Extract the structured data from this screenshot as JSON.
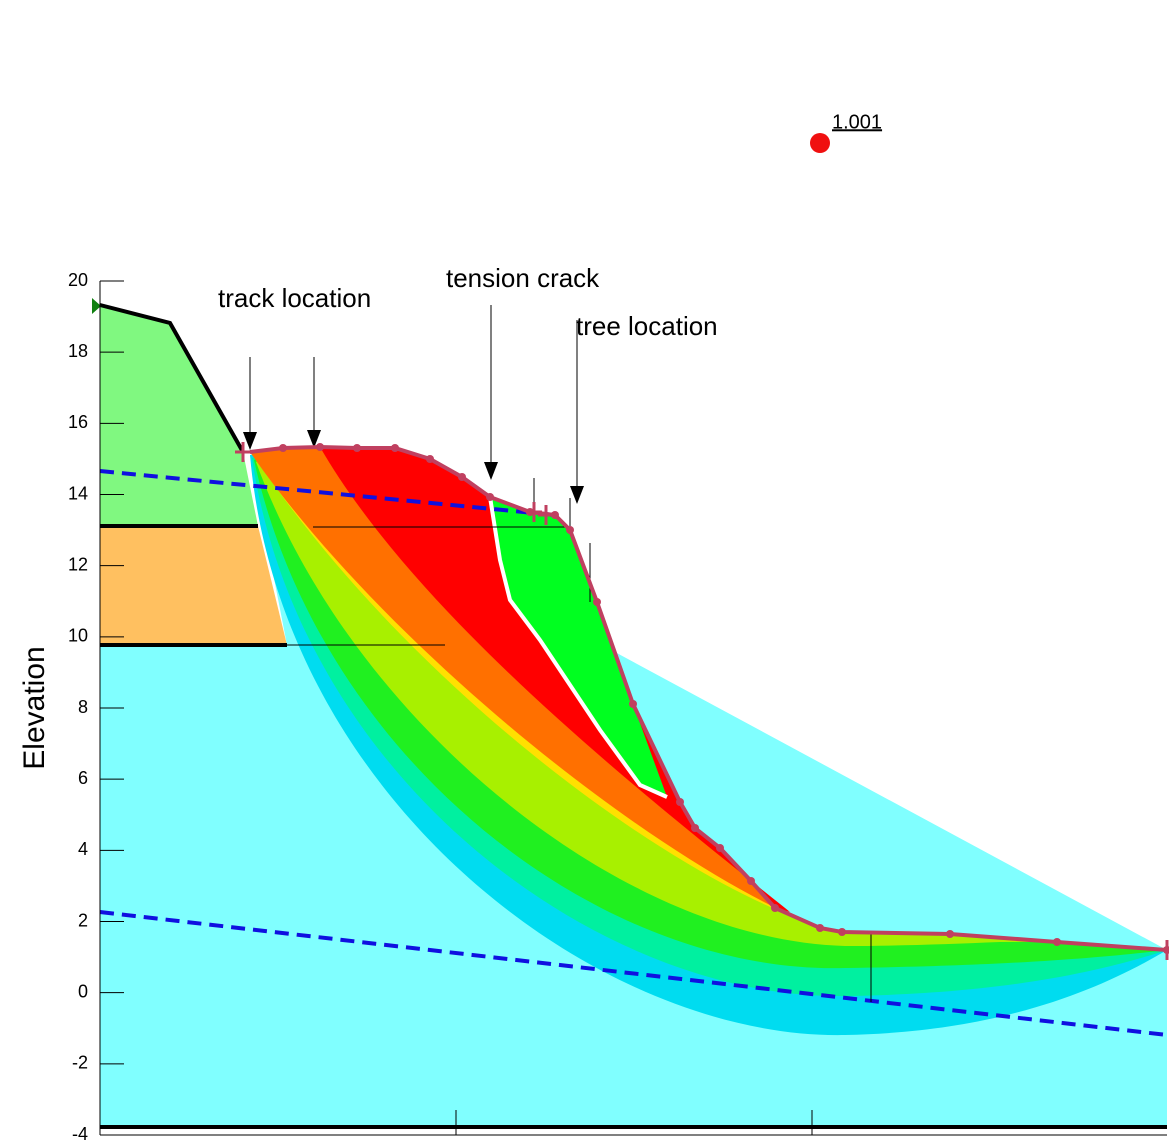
{
  "chart_data": {
    "type": "slope",
    "ylabel": "Elevation",
    "ylim": [
      -4,
      20
    ],
    "yticks": [
      -4,
      -2,
      0,
      2,
      4,
      6,
      8,
      10,
      12,
      14,
      16,
      18,
      20
    ],
    "annotations": [
      "track location",
      "tension crack",
      "tree location"
    ],
    "factor_of_safety": 1.001
  }
}
